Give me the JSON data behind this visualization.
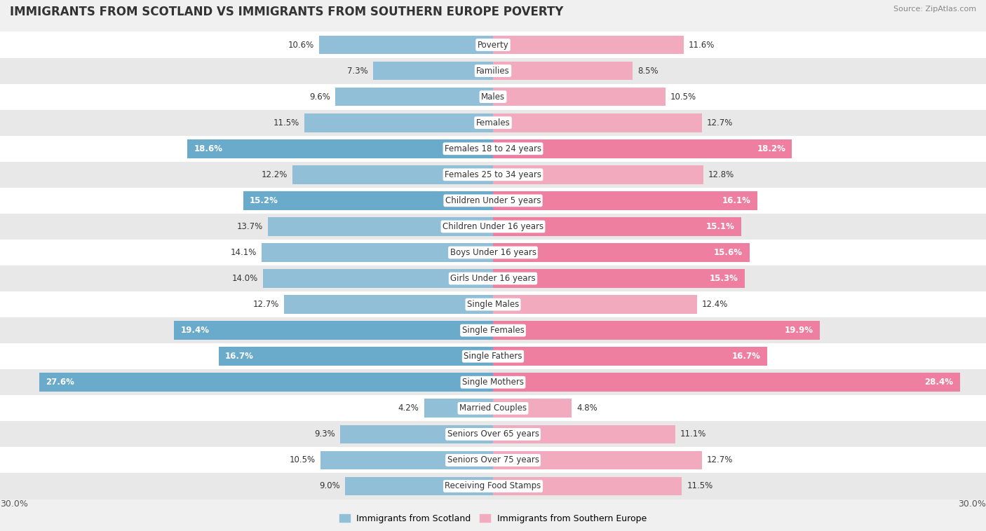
{
  "title": "IMMIGRANTS FROM SCOTLAND VS IMMIGRANTS FROM SOUTHERN EUROPE POVERTY",
  "source": "Source: ZipAtlas.com",
  "categories": [
    "Poverty",
    "Families",
    "Males",
    "Females",
    "Females 18 to 24 years",
    "Females 25 to 34 years",
    "Children Under 5 years",
    "Children Under 16 years",
    "Boys Under 16 years",
    "Girls Under 16 years",
    "Single Males",
    "Single Females",
    "Single Fathers",
    "Single Mothers",
    "Married Couples",
    "Seniors Over 65 years",
    "Seniors Over 75 years",
    "Receiving Food Stamps"
  ],
  "scotland_values": [
    10.6,
    7.3,
    9.6,
    11.5,
    18.6,
    12.2,
    15.2,
    13.7,
    14.1,
    14.0,
    12.7,
    19.4,
    16.7,
    27.6,
    4.2,
    9.3,
    10.5,
    9.0
  ],
  "southern_values": [
    11.6,
    8.5,
    10.5,
    12.7,
    18.2,
    12.8,
    16.1,
    15.1,
    15.6,
    15.3,
    12.4,
    19.9,
    16.7,
    28.4,
    4.8,
    11.1,
    12.7,
    11.5
  ],
  "scotland_color": "#92BFD8",
  "southern_color": "#F2AABE",
  "scotland_highlight_color": "#6AAACA",
  "southern_highlight_color": "#EE7FA0",
  "highlight_threshold": 15.0,
  "axis_max": 30.0,
  "background_color": "#f0f0f0",
  "row_color_even": "#ffffff",
  "row_color_odd": "#e8e8e8",
  "legend_scotland": "Immigrants from Scotland",
  "legend_southern": "Immigrants from Southern Europe"
}
